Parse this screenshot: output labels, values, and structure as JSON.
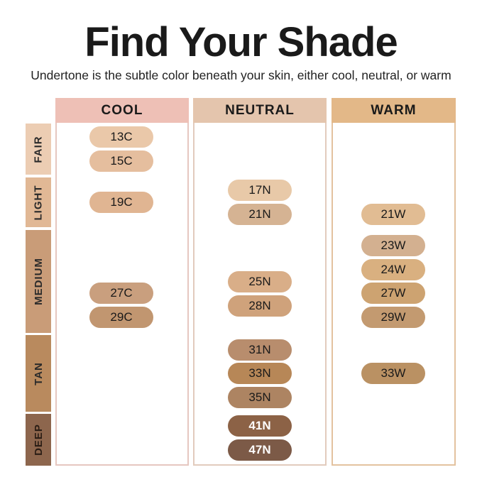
{
  "header": {
    "title": "Find Your Shade",
    "subtitle": "Undertone is the subtle color beneath your skin, either cool, neutral, or warm"
  },
  "columns": [
    {
      "label": "COOL",
      "color": "#eec0b6",
      "border": "#e6c7c0"
    },
    {
      "label": "NEUTRAL",
      "color": "#e4c5ad",
      "border": "#e2cbbd"
    },
    {
      "label": "WARM",
      "color": "#e3b888",
      "border": "#e3c29f"
    }
  ],
  "rows": [
    {
      "label": "FAIR",
      "color": "#eccdb3"
    },
    {
      "label": "LIGHT",
      "color": "#e1b895"
    },
    {
      "label": "MEDIUM",
      "color": "#c99c78"
    },
    {
      "label": "TAN",
      "color": "#b98a5e"
    },
    {
      "label": "DEEP",
      "color": "#8d664d"
    }
  ],
  "shades": {
    "cool": [
      {
        "label": "13C",
        "color": "#eac8a9"
      },
      {
        "label": "15C",
        "color": "#e5be9e"
      },
      {
        "label": "19C",
        "color": "#e0b592"
      },
      {
        "label": "27C",
        "color": "#c99f7e"
      },
      {
        "label": "29C",
        "color": "#c19670"
      }
    ],
    "neutral": [
      {
        "label": "17N",
        "color": "#e8c9a8"
      },
      {
        "label": "21N",
        "color": "#d5b393"
      },
      {
        "label": "25N",
        "color": "#d9ae88"
      },
      {
        "label": "28N",
        "color": "#cfa27b"
      },
      {
        "label": "31N",
        "color": "#b88d6d"
      },
      {
        "label": "33N",
        "color": "#b78757"
      },
      {
        "label": "35N",
        "color": "#ad8462"
      },
      {
        "label": "41N",
        "color": "#8c6246"
      },
      {
        "label": "47N",
        "color": "#7c5a47"
      }
    ],
    "warm": [
      {
        "label": "21W",
        "color": "#e1bc93"
      },
      {
        "label": "23W",
        "color": "#d3b090"
      },
      {
        "label": "24W",
        "color": "#d9b080"
      },
      {
        "label": "27W",
        "color": "#cda371"
      },
      {
        "label": "29W",
        "color": "#c39a70"
      },
      {
        "label": "33W",
        "color": "#ba9163"
      }
    ]
  }
}
